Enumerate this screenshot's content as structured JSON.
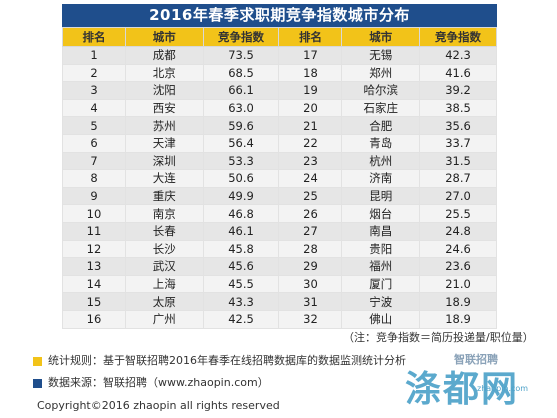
{
  "title": "2016年春季求职期竞争指数城市分布",
  "headers": [
    "排名",
    "城市",
    "竞争指数",
    "排名",
    "城市",
    "竞争指数"
  ],
  "rows": [
    {
      "r1": "1",
      "c1": "成都",
      "v1": "73.5",
      "r2": "17",
      "c2": "无锡",
      "v2": "42.3"
    },
    {
      "r1": "2",
      "c1": "北京",
      "v1": "68.5",
      "r2": "18",
      "c2": "郑州",
      "v2": "41.6"
    },
    {
      "r1": "3",
      "c1": "沈阳",
      "v1": "66.1",
      "r2": "19",
      "c2": "哈尔滨",
      "v2": "39.2"
    },
    {
      "r1": "4",
      "c1": "西安",
      "v1": "63.0",
      "r2": "20",
      "c2": "石家庄",
      "v2": "38.5"
    },
    {
      "r1": "5",
      "c1": "苏州",
      "v1": "59.6",
      "r2": "21",
      "c2": "合肥",
      "v2": "35.6"
    },
    {
      "r1": "6",
      "c1": "天津",
      "v1": "56.4",
      "r2": "22",
      "c2": "青岛",
      "v2": "33.7"
    },
    {
      "r1": "7",
      "c1": "深圳",
      "v1": "53.3",
      "r2": "23",
      "c2": "杭州",
      "v2": "31.5"
    },
    {
      "r1": "8",
      "c1": "大连",
      "v1": "50.6",
      "r2": "24",
      "c2": "济南",
      "v2": "28.7"
    },
    {
      "r1": "9",
      "c1": "重庆",
      "v1": "49.9",
      "r2": "25",
      "c2": "昆明",
      "v2": "27.0"
    },
    {
      "r1": "10",
      "c1": "南京",
      "v1": "46.8",
      "r2": "26",
      "c2": "烟台",
      "v2": "25.5"
    },
    {
      "r1": "11",
      "c1": "长春",
      "v1": "46.1",
      "r2": "27",
      "c2": "南昌",
      "v2": "24.8"
    },
    {
      "r1": "12",
      "c1": "长沙",
      "v1": "45.8",
      "r2": "28",
      "c2": "贵阳",
      "v2": "24.6"
    },
    {
      "r1": "13",
      "c1": "武汉",
      "v1": "45.6",
      "r2": "29",
      "c2": "福州",
      "v2": "23.6"
    },
    {
      "r1": "14",
      "c1": "上海",
      "v1": "45.5",
      "r2": "30",
      "c2": "厦门",
      "v2": "21.0"
    },
    {
      "r1": "15",
      "c1": "太原",
      "v1": "43.3",
      "r2": "31",
      "c2": "宁波",
      "v2": "18.9"
    },
    {
      "r1": "16",
      "c1": "广州",
      "v1": "42.5",
      "r2": "32",
      "c2": "佛山",
      "v2": "18.9"
    }
  ],
  "note": "（注：竞争指数＝简历投递量/职位量）",
  "legend": {
    "rule_label": "统计规则：基于智联招聘2016年春季在线招聘数据库的数据监测统计分析",
    "rule_color": "#f2c319",
    "source_label": "数据来源：智联招聘（www.zhaopin.com）",
    "source_color": "#1f4e8c"
  },
  "copyright": "Copyright©2016 zhaopin all rights reserved",
  "watermark": {
    "sub": "智联招聘",
    "text": "涤都网",
    "url": "zhaopin.com"
  }
}
